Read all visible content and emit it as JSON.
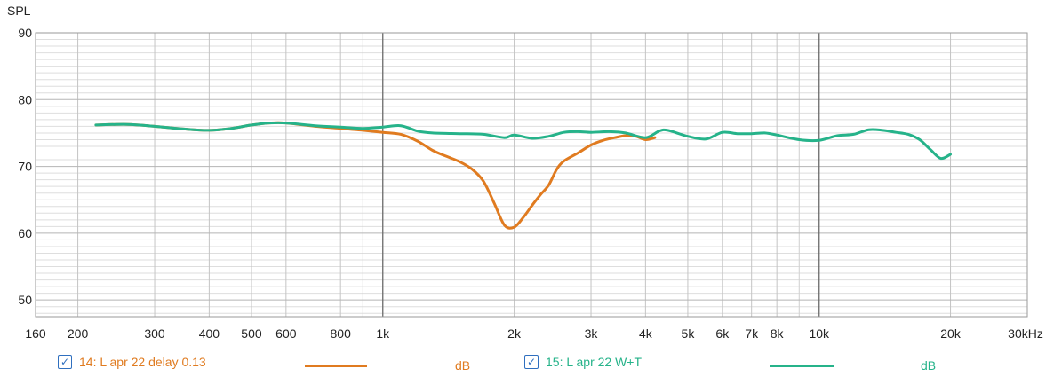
{
  "chart_data": {
    "type": "line",
    "ylabel": "SPL",
    "xunit": "Hz",
    "xscale": "log",
    "xlim": [
      160,
      30000
    ],
    "ylim": [
      47.5,
      90
    ],
    "xticks": [
      160,
      200,
      300,
      400,
      500,
      600,
      800,
      1000,
      2000,
      3000,
      4000,
      5000,
      6000,
      7000,
      8000,
      10000,
      20000,
      30000
    ],
    "xtick_labels": [
      "160",
      "200",
      "300",
      "400",
      "500",
      "600",
      "800",
      "1k",
      "2k",
      "3k",
      "4k",
      "5k",
      "6k",
      "7k",
      "8k",
      "10k",
      "20k",
      "30kHz"
    ],
    "yticks": [
      50,
      60,
      70,
      80,
      90
    ],
    "ytick_labels": [
      "50",
      "60",
      "70",
      "80",
      "90"
    ],
    "grid": true,
    "legend_position": "bottom",
    "series": [
      {
        "name": "14: L apr 22 delay 0.13",
        "unit": "dB",
        "color": "#e07b20",
        "x": [
          220,
          260,
          300,
          350,
          400,
          450,
          500,
          550,
          600,
          700,
          800,
          900,
          1000,
          1100,
          1200,
          1300,
          1400,
          1500,
          1600,
          1700,
          1800,
          1900,
          2000,
          2100,
          2200,
          2300,
          2400,
          2500,
          2600,
          2800,
          3000,
          3200,
          3400,
          3600,
          3800,
          4000,
          4200
        ],
        "y": [
          76.2,
          76.3,
          76.0,
          75.6,
          75.4,
          75.7,
          76.2,
          76.5,
          76.5,
          76.0,
          75.7,
          75.4,
          75.1,
          74.8,
          73.8,
          72.4,
          71.5,
          70.7,
          69.6,
          67.8,
          64.5,
          61.2,
          60.9,
          62.4,
          64.2,
          65.8,
          67.2,
          69.5,
          70.8,
          72.0,
          73.2,
          73.9,
          74.3,
          74.6,
          74.5,
          74.0,
          74.3
        ]
      },
      {
        "name": "15: L apr 22 W+T",
        "unit": "dB",
        "color": "#26b38a",
        "x": [
          220,
          260,
          300,
          350,
          400,
          450,
          500,
          550,
          600,
          700,
          800,
          900,
          1000,
          1100,
          1200,
          1300,
          1500,
          1700,
          1900,
          2000,
          2200,
          2400,
          2600,
          2800,
          3000,
          3300,
          3600,
          4000,
          4300,
          4500,
          5000,
          5500,
          6000,
          6500,
          7000,
          7500,
          8000,
          9000,
          10000,
          11000,
          12000,
          13000,
          14000,
          15000,
          16000,
          17000,
          18000,
          19000,
          20000
        ],
        "y": [
          76.2,
          76.3,
          76.0,
          75.6,
          75.4,
          75.7,
          76.2,
          76.5,
          76.5,
          76.1,
          75.9,
          75.7,
          75.9,
          76.1,
          75.3,
          75.0,
          74.9,
          74.8,
          74.3,
          74.7,
          74.2,
          74.5,
          75.1,
          75.2,
          75.1,
          75.2,
          75.0,
          74.3,
          75.3,
          75.4,
          74.5,
          74.1,
          75.1,
          74.9,
          74.9,
          75.0,
          74.7,
          74.0,
          73.9,
          74.6,
          74.8,
          75.5,
          75.4,
          75.1,
          74.8,
          74.0,
          72.5,
          71.2,
          71.8
        ]
      }
    ]
  }
}
